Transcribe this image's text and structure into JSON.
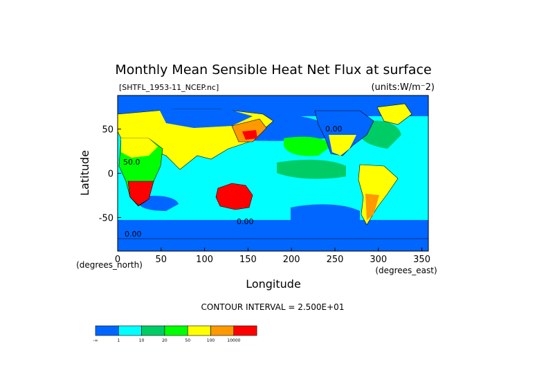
{
  "chart_data": {
    "type": "heatmap",
    "title": "Monthly Mean Sensible Heat Net Flux at surface",
    "file_label": "[SHTFL_1953-11_NCEP.nc]",
    "units_label": "(units:W/m^-2)",
    "xlabel": "Longitude",
    "ylabel": "Latitude",
    "x_unit_label": "(degrees_east)",
    "y_unit_label": "(degrees_north)",
    "xlim": [
      0,
      357.5
    ],
    "ylim": [
      -88,
      88
    ],
    "x_ticks": [
      "0",
      "50",
      "100",
      "150",
      "200",
      "250",
      "300",
      "350"
    ],
    "y_ticks": [
      "50",
      "0",
      "-50"
    ],
    "contour_interval_text": "CONTOUR INTERVAL = 2.500E+01",
    "contour_labels": [
      "50.0",
      "0.00",
      "0.00",
      "0.00"
    ],
    "colorbar": {
      "bins": [
        {
          "color": "#0066ff"
        },
        {
          "color": "#00ffff"
        },
        {
          "color": "#00cc66"
        },
        {
          "color": "#00ff00"
        },
        {
          "color": "#ffff00"
        },
        {
          "color": "#ff9900"
        },
        {
          "color": "#ff0000"
        }
      ],
      "tick_labels": [
        "-∞",
        "1",
        "10",
        "20",
        "50",
        "100",
        "10000"
      ]
    },
    "regions": [
      {
        "name": "land-north-america",
        "class": 4
      },
      {
        "name": "land-eurasia",
        "class": 4
      },
      {
        "name": "land-africa",
        "class": 4
      },
      {
        "name": "land-australia",
        "class": 5
      },
      {
        "name": "land-south-america",
        "class": 4
      },
      {
        "name": "ocean-north-pacific",
        "class": 0
      },
      {
        "name": "ocean-north-atlantic",
        "class": 1
      },
      {
        "name": "ocean-southern",
        "class": 0
      }
    ]
  }
}
